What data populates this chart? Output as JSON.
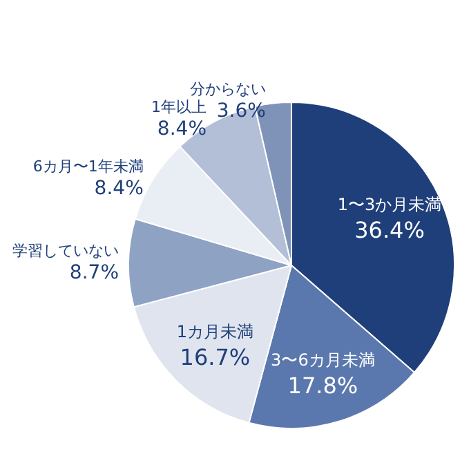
{
  "chart_data": {
    "type": "pie",
    "categories": [
      "1〜3か月未満",
      "3〜6カ月未満",
      "1カ月未満",
      "学習していない",
      "6カ月〜1年未満",
      "1年以上",
      "分からない"
    ],
    "values": [
      36.4,
      17.8,
      16.7,
      8.7,
      8.4,
      8.4,
      3.6
    ],
    "value_labels": [
      "36.4%",
      "17.8%",
      "16.7%",
      "8.7%",
      "8.4%",
      "8.4%",
      "3.6%"
    ],
    "colors": [
      "#1f3f7a",
      "#5a78ad",
      "#dfe4ee",
      "#8ea2c4",
      "#e9edf4",
      "#b2bfd7",
      "#7f93b8"
    ],
    "legend": false
  }
}
